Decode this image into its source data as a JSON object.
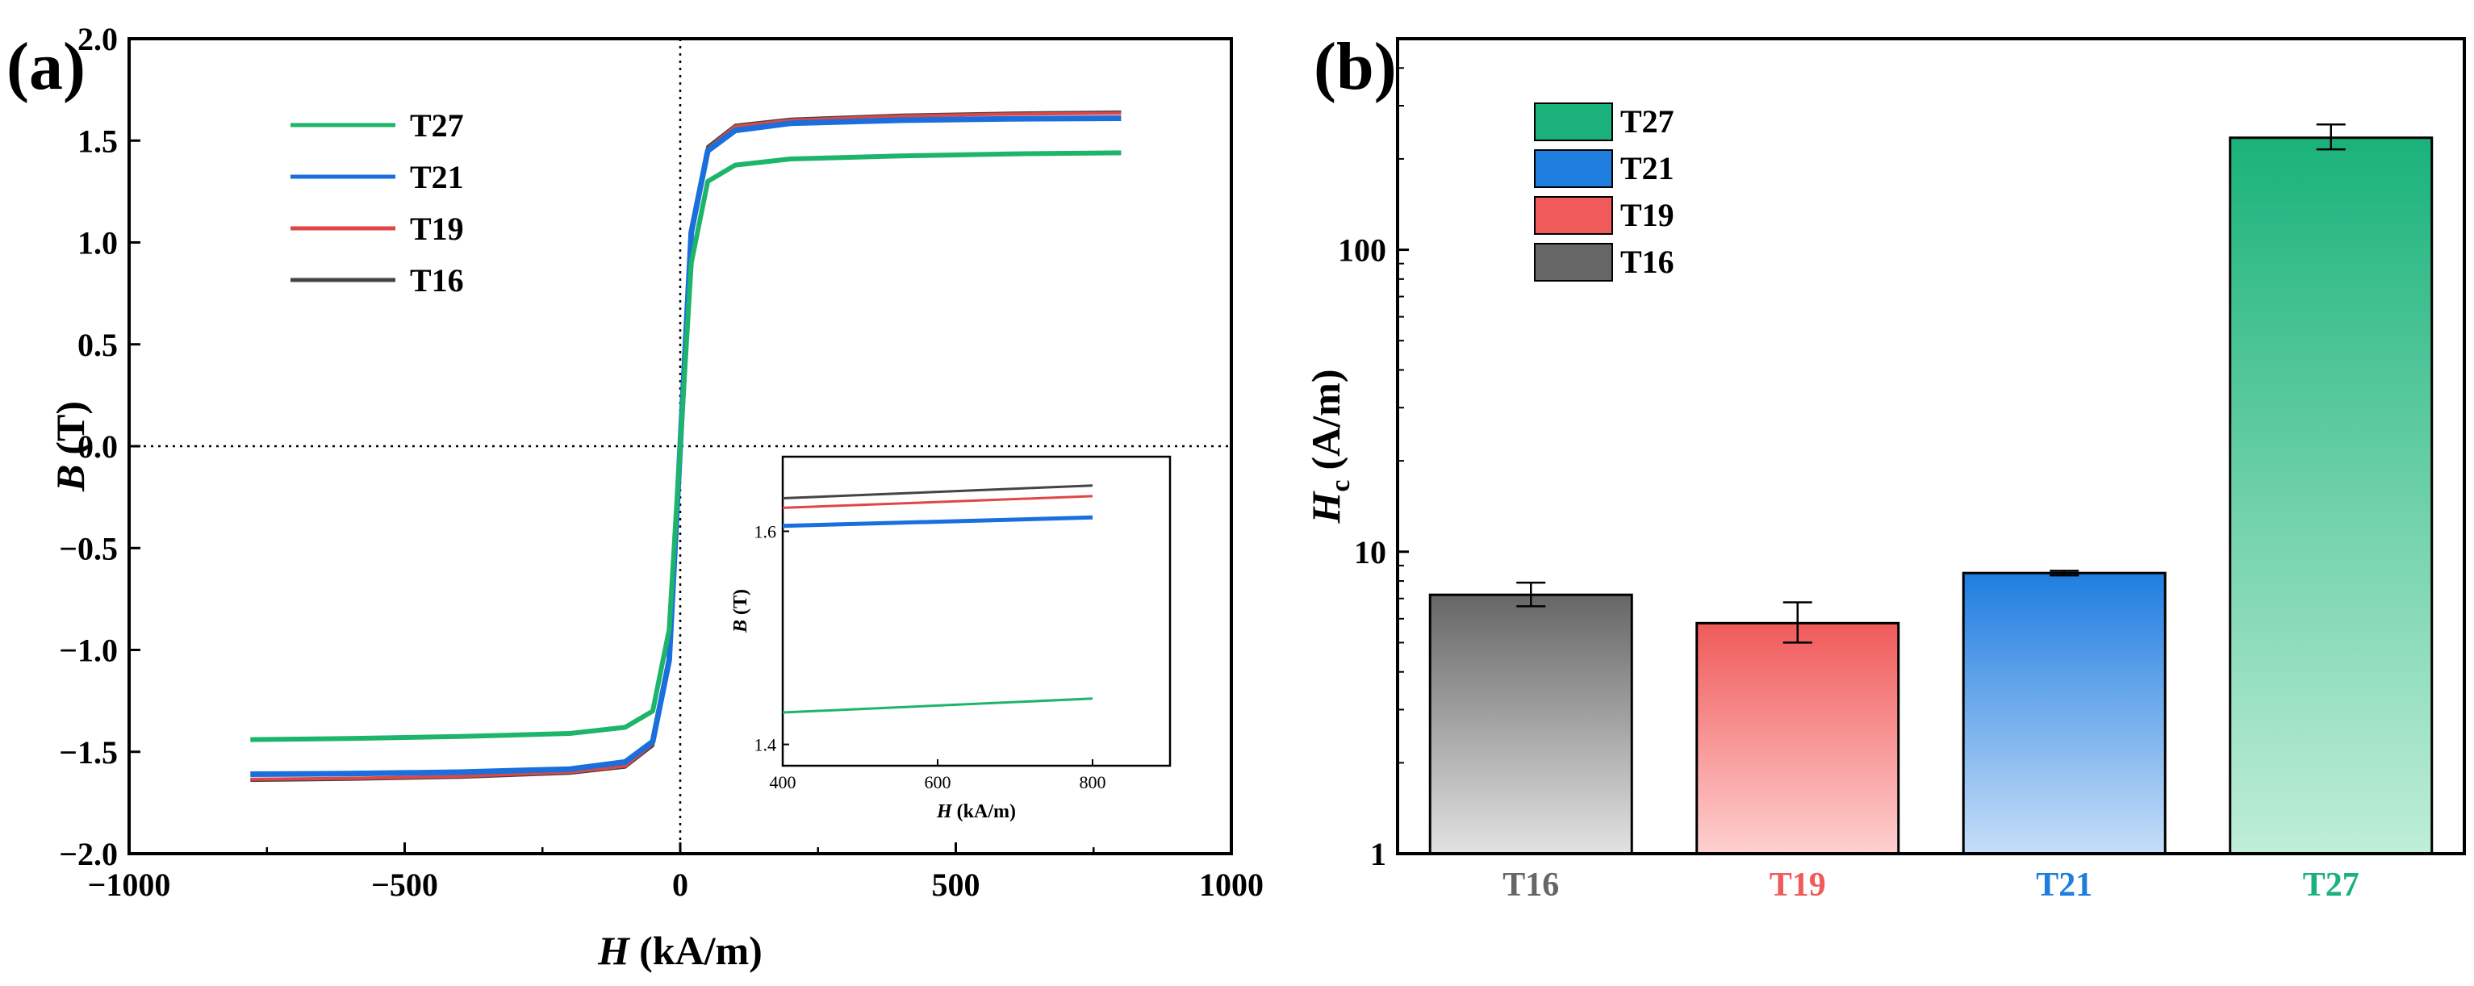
{
  "chart_data": [
    {
      "type": "line",
      "panel": "(a)",
      "xlabel_symbol": "H",
      "xlabel_unit": "(kA/m)",
      "ylabel_symbol": "B",
      "ylabel_unit": "(T)",
      "xlim": [
        -1000,
        1000
      ],
      "ylim": [
        -2.0,
        2.0
      ],
      "x_ticks": [
        "−1000",
        "−500",
        "0",
        "500",
        "1000"
      ],
      "x_tick_values": [
        -1000,
        -500,
        0,
        500,
        1000
      ],
      "y_ticks": [
        "2.0",
        "1.5",
        "1.0",
        "0.5",
        "0.0",
        "−0.5",
        "−1.0",
        "−1.5",
        "−2.0"
      ],
      "y_tick_values": [
        2.0,
        1.5,
        1.0,
        0.5,
        0.0,
        -0.5,
        -1.0,
        -1.5,
        -2.0
      ],
      "legend": [
        "T27",
        "T21",
        "T19",
        "T16"
      ],
      "series": [
        {
          "name": "T27",
          "color": "#1db56a",
          "saturation": 1.44,
          "x": [
            -780,
            -600,
            -400,
            -200,
            -100,
            -50,
            -20,
            0,
            20,
            50,
            100,
            200,
            400,
            600,
            800
          ],
          "y": [
            -1.44,
            -1.435,
            -1.425,
            -1.41,
            -1.38,
            -1.3,
            -0.9,
            0.0,
            0.9,
            1.3,
            1.38,
            1.41,
            1.425,
            1.435,
            1.44
          ]
        },
        {
          "name": "T21",
          "color": "#1a6fdc",
          "saturation": 1.61,
          "x": [
            -780,
            -600,
            -400,
            -200,
            -100,
            -50,
            -20,
            0,
            20,
            50,
            100,
            200,
            400,
            600,
            800
          ],
          "y": [
            -1.61,
            -1.607,
            -1.6,
            -1.585,
            -1.55,
            -1.45,
            -1.05,
            0.0,
            1.05,
            1.45,
            1.55,
            1.585,
            1.6,
            1.607,
            1.61
          ]
        },
        {
          "name": "T19",
          "color": "#e04646",
          "saturation": 1.635,
          "x": [
            -780,
            -600,
            -400,
            -200,
            -100,
            -50,
            -20,
            0,
            20,
            50,
            100,
            200,
            400,
            600,
            800
          ],
          "y": [
            -1.635,
            -1.63,
            -1.62,
            -1.6,
            -1.57,
            -1.46,
            -1.05,
            0.0,
            1.05,
            1.46,
            1.57,
            1.6,
            1.62,
            1.63,
            1.635
          ]
        },
        {
          "name": "T16",
          "color": "#444444",
          "saturation": 1.64,
          "x": [
            -780,
            -600,
            -400,
            -200,
            -100,
            -50,
            -20,
            0,
            20,
            50,
            100,
            200,
            400,
            600,
            800
          ],
          "y": [
            -1.64,
            -1.635,
            -1.625,
            -1.605,
            -1.575,
            -1.47,
            -1.06,
            0.0,
            1.06,
            1.47,
            1.575,
            1.605,
            1.625,
            1.635,
            1.64
          ]
        }
      ],
      "inset": {
        "xlabel_symbol": "H",
        "xlabel_unit": "(kA/m)",
        "ylabel_symbol": "B",
        "ylabel_unit": "(T)",
        "xlim": [
          400,
          900
        ],
        "ylim": [
          1.38,
          1.67
        ],
        "x_ticks": [
          "400",
          "600",
          "800"
        ],
        "x_tick_values": [
          400,
          600,
          800
        ],
        "y_ticks": [
          "1.6",
          "1.4"
        ],
        "y_tick_values": [
          1.6,
          1.4
        ],
        "series": [
          {
            "name": "T16",
            "color": "#444444",
            "x": [
              400,
              800
            ],
            "y": [
              1.631,
              1.643
            ]
          },
          {
            "name": "T19",
            "color": "#e04646",
            "x": [
              400,
              800
            ],
            "y": [
              1.622,
              1.633
            ]
          },
          {
            "name": "T21",
            "color": "#1a6fdc",
            "x": [
              400,
              800
            ],
            "y": [
              1.605,
              1.613
            ]
          },
          {
            "name": "T27",
            "color": "#1db56a",
            "x": [
              400,
              800
            ],
            "y": [
              1.43,
              1.443
            ]
          }
        ]
      }
    },
    {
      "type": "bar",
      "panel": "(b)",
      "ylabel_symbol": "H",
      "ylabel_sub": "c",
      "ylabel_unit": "(A/m)",
      "yscale": "log",
      "ylim": [
        1,
        500
      ],
      "y_ticks": [
        "100",
        "10",
        "1"
      ],
      "y_tick_values": [
        100,
        10,
        1
      ],
      "categories": [
        "T16",
        "T19",
        "T21",
        "T27"
      ],
      "values": [
        7.2,
        5.8,
        8.5,
        235
      ],
      "errors": [
        [
          6.6,
          7.9
        ],
        [
          5.0,
          6.8
        ],
        [
          8.35,
          8.65
        ],
        [
          215,
          260
        ]
      ],
      "colors": [
        "#666666",
        "#f05a5a",
        "#1f7de0",
        "#1ab27a"
      ],
      "light_colors": [
        "#e2e2e2",
        "#ffd0d0",
        "#c6def8",
        "#bfeed8"
      ],
      "legend": [
        "T27",
        "T21",
        "T19",
        "T16"
      ],
      "legend_colors": [
        "#1ab27a",
        "#1f7de0",
        "#f05a5a",
        "#666666"
      ]
    }
  ]
}
